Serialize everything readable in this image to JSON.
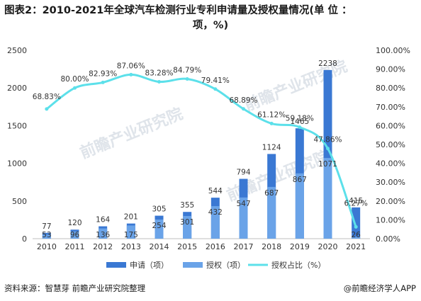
{
  "title": {
    "line1": "图表2：2010-2021年全球汽车检测行业专利申请量及授权量情况(单 位 ：",
    "line2": "项，%)"
  },
  "footer": {
    "source": "资料来源：智慧芽 前瞻产业研究院整理",
    "brand": "@前瞻经济学人APP"
  },
  "watermark": {
    "text": "前瞻产业研究院"
  },
  "colors": {
    "apply": "#3a78d3",
    "grant": "#6aa3e8",
    "ratio": "#5ce0ea",
    "axis_text": "#333333"
  },
  "chart_data": {
    "type": "bar",
    "categories": [
      "2010",
      "2011",
      "2012",
      "2013",
      "2014",
      "2015",
      "2016",
      "2017",
      "2018",
      "2019",
      "2020",
      "2021"
    ],
    "series": [
      {
        "name": "申请（项）",
        "type": "bar",
        "axis": "left",
        "values": [
          77,
          120,
          164,
          201,
          305,
          355,
          544,
          794,
          1124,
          1465,
          2238,
          415
        ],
        "labels": [
          "77",
          "120",
          "164",
          "201",
          "305",
          "355",
          "544",
          "794",
          "1124",
          "1465",
          "2238",
          "415"
        ]
      },
      {
        "name": "授权（项）",
        "type": "bar",
        "axis": "left",
        "values": [
          53,
          96,
          136,
          175,
          254,
          301,
          432,
          547,
          687,
          867,
          1071,
          26
        ],
        "labels": [
          "53",
          "96",
          "136",
          "175",
          "254",
          "301",
          "432",
          "547",
          "687",
          "867",
          "1071",
          "26"
        ]
      },
      {
        "name": "授权占比（%）",
        "type": "line",
        "axis": "right",
        "values": [
          68.83,
          80.0,
          82.93,
          87.06,
          83.28,
          84.79,
          79.41,
          68.89,
          61.12,
          59.18,
          47.86,
          6.27
        ],
        "labels": [
          "68.83%",
          "80.00%",
          "82.93%",
          "87.06%",
          "83.28%",
          "84.79%",
          "79.41%",
          "68.89%",
          "61.12%",
          "59.18%",
          "47.86%",
          "6.27%"
        ]
      }
    ],
    "y_left": {
      "min": 0,
      "max": 2500,
      "ticks": [
        "0",
        "500",
        "1000",
        "1500",
        "2000",
        "2500"
      ],
      "tick_values": [
        0,
        500,
        1000,
        1500,
        2000,
        2500
      ]
    },
    "y_right": {
      "min": 0,
      "max": 100,
      "ticks": [
        "0.00%",
        "10.00%",
        "20.00%",
        "30.00%",
        "40.00%",
        "50.00%",
        "60.00%",
        "70.00%",
        "80.00%",
        "90.00%",
        "100.00%"
      ],
      "tick_values": [
        0,
        10,
        20,
        30,
        40,
        50,
        60,
        70,
        80,
        90,
        100
      ]
    },
    "bars_overlap": true,
    "grid": false,
    "legend_position": "bottom"
  }
}
